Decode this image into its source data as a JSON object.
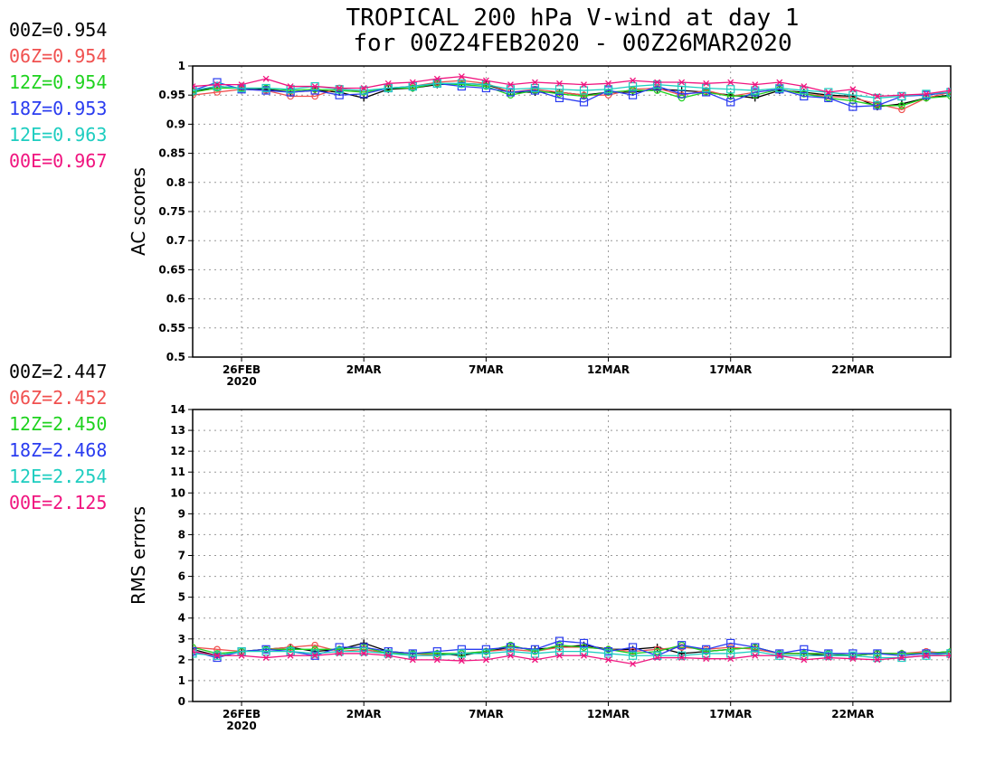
{
  "title_line1": "TROPICAL 200 hPa V-wind at day 1",
  "title_line2": "for 00Z24FEB2020 - 00Z26MAR2020",
  "chart_data": [
    {
      "type": "line",
      "ylabel": "AC scores",
      "ylim": [
        0.5,
        1.0
      ],
      "yticks": [
        "0.5",
        "0.55",
        "0.6",
        "0.65",
        "0.7",
        "0.75",
        "0.8",
        "0.85",
        "0.9",
        "0.95",
        "1"
      ],
      "ytick_values": [
        0.5,
        0.55,
        0.6,
        0.65,
        0.7,
        0.75,
        0.8,
        0.85,
        0.9,
        0.95,
        1.0
      ],
      "xticks": [
        {
          "date": "2020-02-26",
          "label": "26FEB",
          "sub": "2020"
        },
        {
          "date": "2020-03-02",
          "label": "2MAR",
          "sub": ""
        },
        {
          "date": "2020-03-07",
          "label": "7MAR",
          "sub": ""
        },
        {
          "date": "2020-03-12",
          "label": "12MAR",
          "sub": ""
        },
        {
          "date": "2020-03-17",
          "label": "17MAR",
          "sub": ""
        },
        {
          "date": "2020-03-22",
          "label": "22MAR",
          "sub": ""
        }
      ],
      "xlim": [
        "2020-02-24",
        "2020-03-26"
      ],
      "grid": true,
      "legend": [
        {
          "label": "00Z=0.954",
          "color": "#000000"
        },
        {
          "label": "06Z=0.954",
          "color": "#f0504f"
        },
        {
          "label": "12Z=0.954",
          "color": "#1ed21e"
        },
        {
          "label": "18Z=0.953",
          "color": "#2a3cf0"
        },
        {
          "label": "12E=0.963",
          "color": "#1ecdc0"
        },
        {
          "label": "00E=0.967",
          "color": "#f0147f"
        }
      ],
      "x": [
        "2020-02-24",
        "2020-02-25",
        "2020-02-26",
        "2020-02-27",
        "2020-02-28",
        "2020-02-29",
        "2020-03-01",
        "2020-03-02",
        "2020-03-03",
        "2020-03-04",
        "2020-03-05",
        "2020-03-06",
        "2020-03-07",
        "2020-03-08",
        "2020-03-09",
        "2020-03-10",
        "2020-03-11",
        "2020-03-12",
        "2020-03-13",
        "2020-03-14",
        "2020-03-15",
        "2020-03-16",
        "2020-03-17",
        "2020-03-18",
        "2020-03-19",
        "2020-03-20",
        "2020-03-21",
        "2020-03-22",
        "2020-03-23",
        "2020-03-24",
        "2020-03-25",
        "2020-03-26"
      ],
      "series": [
        {
          "name": "00Z",
          "color": "#000000",
          "marker": "plus",
          "values": [
            0.955,
            0.965,
            0.962,
            0.96,
            0.955,
            0.958,
            0.955,
            0.945,
            0.96,
            0.962,
            0.968,
            0.97,
            0.968,
            0.955,
            0.955,
            0.955,
            0.95,
            0.955,
            0.955,
            0.96,
            0.958,
            0.955,
            0.95,
            0.945,
            0.958,
            0.955,
            0.95,
            0.948,
            0.93,
            0.935,
            0.945,
            0.95
          ]
        },
        {
          "name": "06Z",
          "color": "#f0504f",
          "marker": "circle",
          "values": [
            0.95,
            0.955,
            0.96,
            0.958,
            0.948,
            0.948,
            0.962,
            0.955,
            0.962,
            0.965,
            0.972,
            0.975,
            0.97,
            0.955,
            0.96,
            0.955,
            0.95,
            0.95,
            0.96,
            0.962,
            0.95,
            0.958,
            0.948,
            0.955,
            0.96,
            0.952,
            0.948,
            0.945,
            0.935,
            0.925,
            0.945,
            0.955
          ]
        },
        {
          "name": "12Z",
          "color": "#1ed21e",
          "marker": "circle",
          "values": [
            0.955,
            0.962,
            0.962,
            0.962,
            0.958,
            0.96,
            0.958,
            0.955,
            0.962,
            0.962,
            0.97,
            0.968,
            0.965,
            0.95,
            0.958,
            0.952,
            0.948,
            0.955,
            0.958,
            0.958,
            0.945,
            0.955,
            0.948,
            0.95,
            0.96,
            0.952,
            0.945,
            0.94,
            0.932,
            0.932,
            0.945,
            0.948
          ]
        },
        {
          "name": "18Z",
          "color": "#2a3cf0",
          "marker": "square",
          "values": [
            0.958,
            0.972,
            0.96,
            0.958,
            0.955,
            0.958,
            0.95,
            0.952,
            0.962,
            0.965,
            0.97,
            0.965,
            0.962,
            0.955,
            0.958,
            0.945,
            0.938,
            0.958,
            0.95,
            0.965,
            0.952,
            0.955,
            0.938,
            0.955,
            0.96,
            0.948,
            0.945,
            0.93,
            0.932,
            0.948,
            0.95,
            0.955
          ]
        },
        {
          "name": "12E",
          "color": "#1ecdc0",
          "marker": "square",
          "values": [
            0.958,
            0.965,
            0.962,
            0.962,
            0.96,
            0.965,
            0.96,
            0.958,
            0.962,
            0.965,
            0.97,
            0.97,
            0.968,
            0.96,
            0.962,
            0.96,
            0.958,
            0.96,
            0.965,
            0.968,
            0.965,
            0.962,
            0.96,
            0.958,
            0.962,
            0.958,
            0.955,
            0.95,
            0.945,
            0.948,
            0.952,
            0.955
          ]
        },
        {
          "name": "00E",
          "color": "#f0147f",
          "marker": "x",
          "values": [
            0.965,
            0.968,
            0.968,
            0.978,
            0.965,
            0.965,
            0.962,
            0.962,
            0.97,
            0.972,
            0.978,
            0.982,
            0.975,
            0.968,
            0.972,
            0.97,
            0.968,
            0.97,
            0.975,
            0.972,
            0.972,
            0.97,
            0.972,
            0.968,
            0.972,
            0.965,
            0.955,
            0.96,
            0.948,
            0.95,
            0.952,
            0.958
          ]
        }
      ]
    },
    {
      "type": "line",
      "ylabel": "RMS errors",
      "ylim": [
        0,
        14
      ],
      "yticks": [
        "0",
        "1",
        "2",
        "3",
        "4",
        "5",
        "6",
        "7",
        "8",
        "9",
        "10",
        "11",
        "12",
        "13",
        "14"
      ],
      "ytick_values": [
        0,
        1,
        2,
        3,
        4,
        5,
        6,
        7,
        8,
        9,
        10,
        11,
        12,
        13,
        14
      ],
      "xticks": [
        {
          "date": "2020-02-26",
          "label": "26FEB",
          "sub": "2020"
        },
        {
          "date": "2020-03-02",
          "label": "2MAR",
          "sub": ""
        },
        {
          "date": "2020-03-07",
          "label": "7MAR",
          "sub": ""
        },
        {
          "date": "2020-03-12",
          "label": "12MAR",
          "sub": ""
        },
        {
          "date": "2020-03-17",
          "label": "17MAR",
          "sub": ""
        },
        {
          "date": "2020-03-22",
          "label": "22MAR",
          "sub": ""
        }
      ],
      "xlim": [
        "2020-02-24",
        "2020-03-26"
      ],
      "grid": true,
      "legend": [
        {
          "label": "00Z=2.447",
          "color": "#000000"
        },
        {
          "label": "06Z=2.452",
          "color": "#f0504f"
        },
        {
          "label": "12Z=2.450",
          "color": "#1ed21e"
        },
        {
          "label": "18Z=2.468",
          "color": "#2a3cf0"
        },
        {
          "label": "12E=2.254",
          "color": "#1ecdc0"
        },
        {
          "label": "00E=2.125",
          "color": "#f0147f"
        }
      ],
      "x": [
        "2020-02-24",
        "2020-02-25",
        "2020-02-26",
        "2020-02-27",
        "2020-02-28",
        "2020-02-29",
        "2020-03-01",
        "2020-03-02",
        "2020-03-03",
        "2020-03-04",
        "2020-03-05",
        "2020-03-06",
        "2020-03-07",
        "2020-03-08",
        "2020-03-09",
        "2020-03-10",
        "2020-03-11",
        "2020-03-12",
        "2020-03-13",
        "2020-03-14",
        "2020-03-15",
        "2020-03-16",
        "2020-03-17",
        "2020-03-18",
        "2020-03-19",
        "2020-03-20",
        "2020-03-21",
        "2020-03-22",
        "2020-03-23",
        "2020-03-24",
        "2020-03-25",
        "2020-03-26"
      ],
      "series": [
        {
          "name": "00Z",
          "color": "#000000",
          "marker": "plus",
          "values": [
            2.5,
            2.2,
            2.4,
            2.5,
            2.6,
            2.4,
            2.5,
            2.8,
            2.4,
            2.3,
            2.3,
            2.2,
            2.4,
            2.6,
            2.5,
            2.6,
            2.7,
            2.5,
            2.5,
            2.6,
            2.3,
            2.4,
            2.5,
            2.6,
            2.3,
            2.3,
            2.2,
            2.2,
            2.3,
            2.3,
            2.3,
            2.4
          ]
        },
        {
          "name": "06Z",
          "color": "#f0504f",
          "marker": "circle",
          "values": [
            2.6,
            2.5,
            2.4,
            2.5,
            2.6,
            2.7,
            2.4,
            2.5,
            2.3,
            2.3,
            2.2,
            2.3,
            2.4,
            2.5,
            2.4,
            2.6,
            2.6,
            2.5,
            2.4,
            2.5,
            2.6,
            2.5,
            2.6,
            2.5,
            2.3,
            2.3,
            2.3,
            2.2,
            2.3,
            2.3,
            2.4,
            2.3
          ]
        },
        {
          "name": "12Z",
          "color": "#1ed21e",
          "marker": "circle",
          "values": [
            2.6,
            2.3,
            2.4,
            2.5,
            2.5,
            2.5,
            2.5,
            2.6,
            2.3,
            2.3,
            2.3,
            2.3,
            2.4,
            2.7,
            2.4,
            2.7,
            2.6,
            2.5,
            2.3,
            2.4,
            2.7,
            2.4,
            2.5,
            2.6,
            2.3,
            2.3,
            2.3,
            2.2,
            2.3,
            2.3,
            2.3,
            2.4
          ]
        },
        {
          "name": "18Z",
          "color": "#2a3cf0",
          "marker": "square",
          "values": [
            2.4,
            2.1,
            2.4,
            2.5,
            2.4,
            2.2,
            2.6,
            2.6,
            2.4,
            2.3,
            2.4,
            2.5,
            2.5,
            2.6,
            2.5,
            2.9,
            2.8,
            2.4,
            2.6,
            2.2,
            2.7,
            2.5,
            2.8,
            2.6,
            2.3,
            2.5,
            2.3,
            2.3,
            2.3,
            2.2,
            2.3,
            2.3
          ]
        },
        {
          "name": "12E",
          "color": "#1ecdc0",
          "marker": "square",
          "values": [
            2.3,
            2.2,
            2.4,
            2.4,
            2.4,
            2.3,
            2.4,
            2.4,
            2.3,
            2.2,
            2.2,
            2.3,
            2.3,
            2.4,
            2.3,
            2.4,
            2.4,
            2.3,
            2.2,
            2.2,
            2.2,
            2.3,
            2.3,
            2.4,
            2.2,
            2.2,
            2.2,
            2.2,
            2.1,
            2.1,
            2.2,
            2.3
          ]
        },
        {
          "name": "00E",
          "color": "#f0147f",
          "marker": "x",
          "values": [
            2.4,
            2.2,
            2.2,
            2.1,
            2.2,
            2.2,
            2.3,
            2.3,
            2.2,
            2.0,
            2.0,
            1.95,
            2.0,
            2.2,
            2.0,
            2.2,
            2.2,
            2.0,
            1.8,
            2.1,
            2.1,
            2.05,
            2.05,
            2.2,
            2.2,
            2.0,
            2.1,
            2.05,
            2.0,
            2.1,
            2.2,
            2.2
          ]
        }
      ]
    }
  ]
}
